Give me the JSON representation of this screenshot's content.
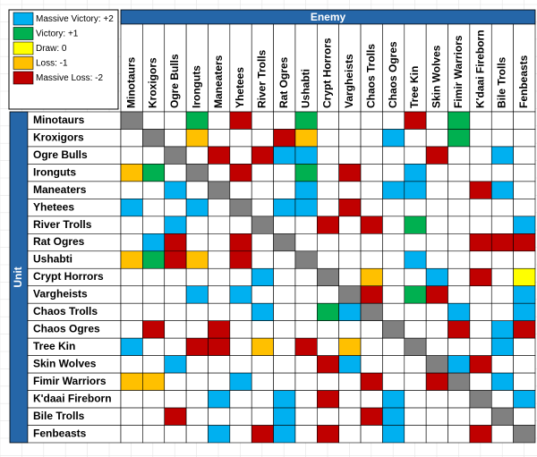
{
  "chart_data": {
    "type": "heatmap",
    "x_label": "Enemy",
    "y_label": "Unit",
    "x_categories": [
      "Minotaurs",
      "Kroxigors",
      "Ogre Bulls",
      "Ironguts",
      "Maneaters",
      "Yhetees",
      "River Trolls",
      "Rat Ogres",
      "Ushabti",
      "Crypt Horrors",
      "Vargheists",
      "Chaos Trolls",
      "Chaos Ogres",
      "Tree Kin",
      "Skin Wolves",
      "Fimir Warriors",
      "K'daai Fireborn",
      "Bile Trolls",
      "Fenbeasts"
    ],
    "y_categories": [
      "Minotaurs",
      "Kroxigors",
      "Ogre Bulls",
      "Ironguts",
      "Maneaters",
      "Yhetees",
      "River Trolls",
      "Rat Ogres",
      "Ushabti",
      "Crypt Horrors",
      "Vargheists",
      "Chaos Trolls",
      "Chaos Ogres",
      "Tree Kin",
      "Skin Wolves",
      "Fimir Warriors",
      "K'daai Fireborn",
      "Bile Trolls",
      "Fenbeasts"
    ],
    "legend": [
      {
        "label": "Massive Victory: +2",
        "value": 2,
        "color": "#00b0f0"
      },
      {
        "label": "Victory: +1",
        "value": 1,
        "color": "#00b050"
      },
      {
        "label": "Draw: 0",
        "value": 0,
        "color": "#ffff00"
      },
      {
        "label": "Loss: -1",
        "value": -1,
        "color": "#ffc000"
      },
      {
        "label": "Massive Loss: -2",
        "value": -2,
        "color": "#c00000"
      }
    ],
    "header_color": "#2566a8",
    "diagonal_color": "#808080",
    "values": [
      [
        null,
        null,
        null,
        1,
        null,
        -2,
        null,
        null,
        1,
        null,
        null,
        null,
        null,
        -2,
        null,
        1,
        null,
        null,
        null
      ],
      [
        null,
        null,
        null,
        -1,
        null,
        null,
        null,
        -2,
        -1,
        null,
        null,
        null,
        2,
        null,
        null,
        1,
        null,
        null,
        null
      ],
      [
        null,
        null,
        null,
        null,
        -2,
        null,
        -2,
        2,
        2,
        null,
        null,
        null,
        null,
        null,
        -2,
        null,
        null,
        2,
        null
      ],
      [
        -1,
        1,
        null,
        null,
        null,
        -2,
        null,
        null,
        1,
        null,
        -2,
        null,
        null,
        2,
        null,
        null,
        null,
        null,
        null
      ],
      [
        null,
        null,
        2,
        null,
        null,
        null,
        null,
        null,
        2,
        null,
        null,
        null,
        2,
        2,
        null,
        null,
        -2,
        2,
        null
      ],
      [
        2,
        null,
        null,
        2,
        null,
        null,
        null,
        2,
        2,
        null,
        -2,
        null,
        null,
        null,
        null,
        null,
        null,
        null,
        null
      ],
      [
        null,
        null,
        2,
        null,
        null,
        null,
        null,
        null,
        null,
        -2,
        null,
        -2,
        null,
        1,
        null,
        null,
        null,
        null,
        2
      ],
      [
        null,
        2,
        -2,
        null,
        null,
        -2,
        null,
        null,
        null,
        null,
        null,
        null,
        null,
        null,
        null,
        null,
        -2,
        -2,
        -2
      ],
      [
        -1,
        1,
        -2,
        -1,
        null,
        -2,
        null,
        null,
        null,
        null,
        null,
        null,
        null,
        2,
        null,
        null,
        null,
        null,
        null
      ],
      [
        null,
        null,
        null,
        null,
        null,
        null,
        2,
        null,
        null,
        null,
        null,
        -1,
        null,
        null,
        2,
        null,
        -2,
        null,
        0
      ],
      [
        null,
        null,
        null,
        2,
        null,
        2,
        null,
        null,
        null,
        null,
        null,
        -2,
        null,
        1,
        -2,
        null,
        null,
        null,
        2
      ],
      [
        null,
        null,
        null,
        null,
        null,
        null,
        2,
        null,
        null,
        1,
        2,
        null,
        null,
        null,
        null,
        2,
        null,
        null,
        2
      ],
      [
        null,
        -2,
        null,
        null,
        -2,
        null,
        null,
        null,
        null,
        null,
        null,
        null,
        null,
        null,
        null,
        -2,
        null,
        2,
        -2
      ],
      [
        2,
        null,
        null,
        -2,
        -2,
        null,
        -1,
        null,
        -2,
        null,
        -1,
        null,
        null,
        null,
        null,
        null,
        null,
        2,
        null
      ],
      [
        null,
        null,
        2,
        null,
        null,
        null,
        null,
        null,
        null,
        -2,
        2,
        null,
        null,
        null,
        null,
        2,
        -2,
        null,
        null
      ],
      [
        -1,
        -1,
        null,
        null,
        null,
        2,
        null,
        null,
        null,
        null,
        null,
        -2,
        null,
        null,
        -2,
        null,
        null,
        2,
        null
      ],
      [
        null,
        null,
        null,
        null,
        2,
        null,
        null,
        2,
        null,
        -2,
        null,
        null,
        2,
        null,
        null,
        null,
        null,
        null,
        2
      ],
      [
        null,
        null,
        -2,
        null,
        null,
        null,
        null,
        2,
        null,
        null,
        null,
        -2,
        2,
        null,
        null,
        null,
        null,
        null,
        null
      ],
      [
        null,
        null,
        null,
        null,
        2,
        null,
        -2,
        2,
        null,
        -2,
        null,
        null,
        2,
        null,
        null,
        null,
        -2,
        null,
        null
      ]
    ]
  }
}
